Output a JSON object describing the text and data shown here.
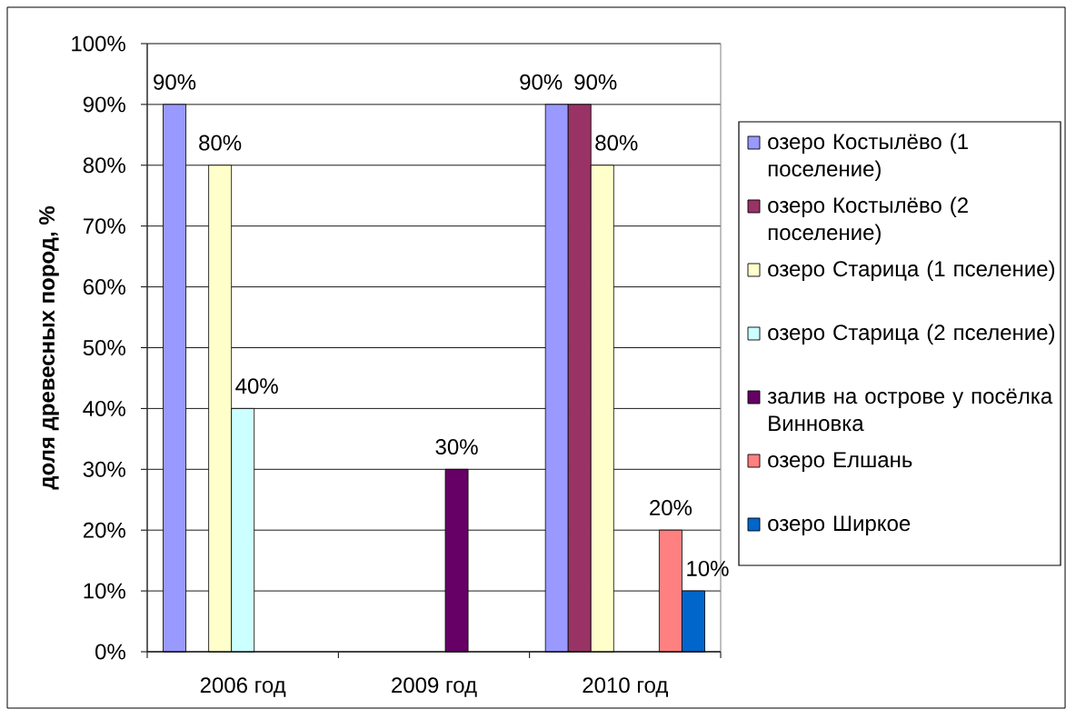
{
  "chart_data": {
    "type": "bar",
    "ylabel": "доля древесных пород, %",
    "categories": [
      "2006 год",
      "2009 год",
      "2010 год"
    ],
    "series": [
      {
        "name": "озеро Костылёво (1 поселение)",
        "color": "#9999ff",
        "values": [
          90,
          null,
          90
        ],
        "value_labels": [
          "90%",
          null,
          "90%"
        ]
      },
      {
        "name": "озеро Костылёво (2 поселение)",
        "color": "#993366",
        "values": [
          null,
          null,
          90
        ],
        "value_labels": [
          null,
          null,
          "90%"
        ]
      },
      {
        "name": "озеро Старица (1 пселение)",
        "color": "#ffffcc",
        "values": [
          80,
          null,
          80
        ],
        "value_labels": [
          "80%",
          null,
          "80%"
        ]
      },
      {
        "name": "озеро Старица (2 пселение)",
        "color": "#ccffff",
        "values": [
          40,
          null,
          null
        ],
        "value_labels": [
          "40%",
          null,
          null
        ]
      },
      {
        "name": "залив на острове у посёлка Винновка",
        "color": "#660066",
        "values": [
          null,
          30,
          null
        ],
        "value_labels": [
          null,
          "30%",
          null
        ]
      },
      {
        "name": "озеро Елшань",
        "color": "#ff8080",
        "values": [
          null,
          null,
          20
        ],
        "value_labels": [
          null,
          null,
          "20%"
        ]
      },
      {
        "name": "озеро Ширкое",
        "color": "#0066cc",
        "values": [
          null,
          null,
          10
        ],
        "value_labels": [
          null,
          null,
          "10%"
        ]
      }
    ],
    "ylim": [
      0,
      100
    ],
    "yticks": [
      {
        "value": 0,
        "label": "0%"
      },
      {
        "value": 10,
        "label": "10%"
      },
      {
        "value": 20,
        "label": "20%"
      },
      {
        "value": 30,
        "label": "30%"
      },
      {
        "value": 40,
        "label": "40%"
      },
      {
        "value": 50,
        "label": "50%"
      },
      {
        "value": 60,
        "label": "60%"
      },
      {
        "value": 70,
        "label": "70%"
      },
      {
        "value": 80,
        "label": "80%"
      },
      {
        "value": 90,
        "label": "90%"
      },
      {
        "value": 100,
        "label": "100%"
      }
    ],
    "grid": "y",
    "legend": "right"
  }
}
